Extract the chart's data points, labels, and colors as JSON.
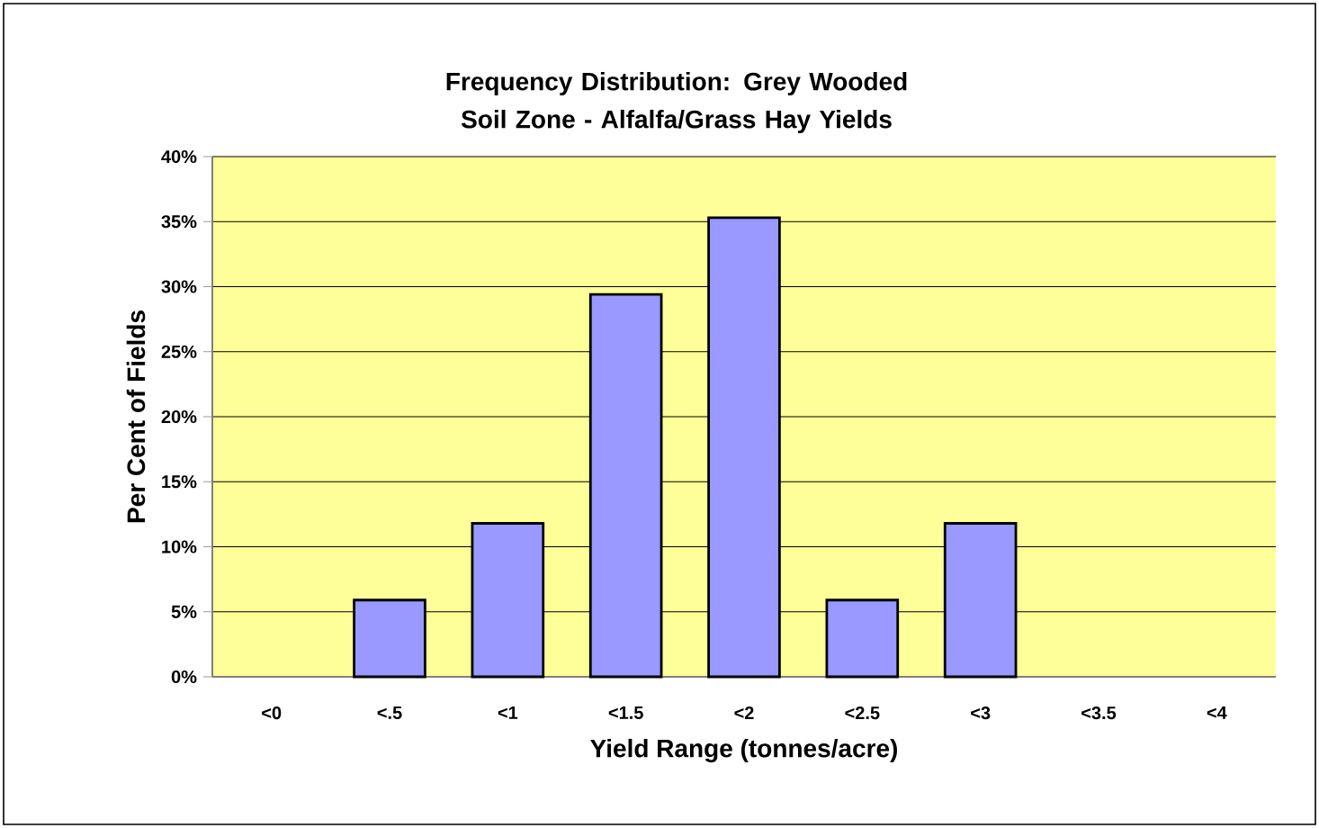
{
  "chart_data": {
    "type": "bar",
    "title": "Frequency Distribution: Grey Wooded Soil Zone - Alfalfa/Grass Hay Yields",
    "xlabel": "Yield Range (tonnes/acre)",
    "ylabel": "Per Cent of Fields",
    "categories": [
      "<0",
      "<.5",
      "<1",
      "<1.5",
      "<2",
      "<2.5",
      "<3",
      "<3.5",
      "<4"
    ],
    "values": [
      0,
      5.9,
      11.8,
      29.4,
      35.3,
      5.9,
      11.8,
      0,
      0
    ],
    "color": "#9999ff",
    "ylim": [
      0,
      40
    ],
    "yticks": [
      {
        "value": 0,
        "label": "0%"
      },
      {
        "value": 5,
        "label": "5%"
      },
      {
        "value": 10,
        "label": "10%"
      },
      {
        "value": 15,
        "label": "15%"
      },
      {
        "value": 20,
        "label": "20%"
      },
      {
        "value": 25,
        "label": "25%"
      },
      {
        "value": 30,
        "label": "30%"
      },
      {
        "value": 35,
        "label": "35%"
      },
      {
        "value": 40,
        "label": "40%"
      }
    ],
    "grid": "y"
  }
}
